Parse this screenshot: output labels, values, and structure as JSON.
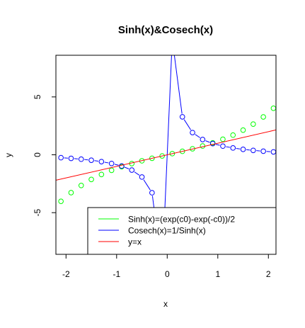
{
  "chart_data": {
    "type": "line",
    "title": "Sinh(x)&Cosech(x)",
    "xlabel": "x",
    "ylabel": "y",
    "xlim": [
      -2.2,
      2.15
    ],
    "ylim": [
      -8.6,
      8.6
    ],
    "x_ticks": [
      -2,
      -1,
      0,
      1,
      2
    ],
    "x_tick_labels": [
      "-2",
      "-1",
      "0",
      "1",
      "2"
    ],
    "y_ticks": [
      -5,
      0,
      5
    ],
    "y_tick_labels": [
      "-5",
      "0",
      "5"
    ],
    "legend_position": "bottom-right",
    "series": [
      {
        "name": "Sinh(x)=(exp(c0)-exp(-c0))/2",
        "color": "#00ff00",
        "style": "points",
        "x": [
          -2.1,
          -1.9,
          -1.7,
          -1.5,
          -1.3,
          -1.1,
          -0.9,
          -0.7,
          -0.5,
          -0.3,
          -0.1,
          0.1,
          0.3,
          0.5,
          0.7,
          0.9,
          1.1,
          1.3,
          1.5,
          1.7,
          1.9,
          2.1
        ],
        "y": [
          -4.02,
          -3.27,
          -2.65,
          -2.13,
          -1.7,
          -1.34,
          -1.03,
          -0.76,
          -0.52,
          -0.3,
          -0.1,
          0.1,
          0.3,
          0.52,
          0.76,
          1.03,
          1.34,
          1.7,
          2.13,
          2.65,
          3.27,
          4.02
        ]
      },
      {
        "name": "Cosech(x)=1/Sinh(x)",
        "color": "#0000ff",
        "style": "both",
        "x": [
          -2.1,
          -1.9,
          -1.7,
          -1.5,
          -1.3,
          -1.1,
          -0.9,
          -0.7,
          -0.5,
          -0.3,
          -0.1,
          0.1,
          0.3,
          0.5,
          0.7,
          0.9,
          1.1,
          1.3,
          1.5,
          1.7,
          1.9,
          2.1
        ],
        "y": [
          -0.25,
          -0.31,
          -0.38,
          -0.47,
          -0.59,
          -0.75,
          -0.97,
          -1.32,
          -1.92,
          -3.28,
          -9.98,
          9.98,
          3.28,
          1.92,
          1.32,
          0.97,
          0.75,
          0.59,
          0.47,
          0.38,
          0.31,
          0.25
        ]
      },
      {
        "name": "y=x",
        "color": "#ff0000",
        "style": "line",
        "x": [
          -2.2,
          2.2
        ],
        "y": [
          -2.2,
          2.2
        ]
      }
    ]
  }
}
